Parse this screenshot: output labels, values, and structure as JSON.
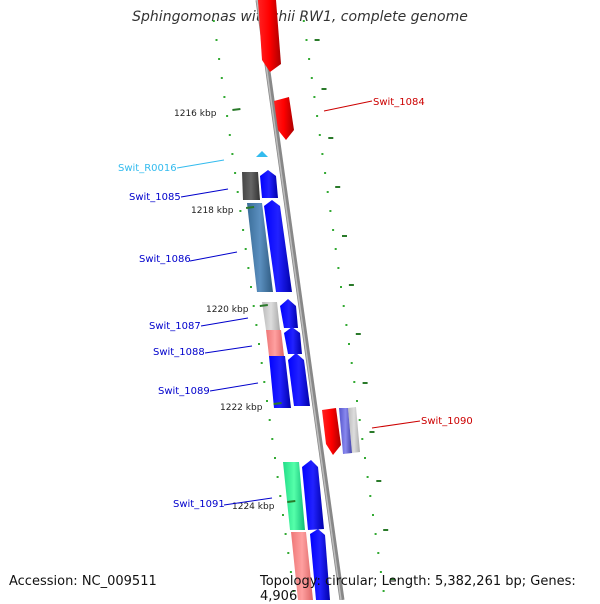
{
  "title": "Sphingomonas wittichii RW1, complete genome",
  "footer": {
    "accession": "Accession: NC_009511",
    "topology": "Topology: circular; Length: 5,382,261 bp; Genes: 4,906"
  },
  "ticks": [
    "1216 kbp",
    "1218 kbp",
    "1220 kbp",
    "1222 kbp",
    "1224 kbp"
  ],
  "genes": [
    {
      "label": "Swit_1084",
      "color": "#cc0000"
    },
    {
      "label": "Swit_R0016",
      "color": "#33bbee"
    },
    {
      "label": "Swit_1085",
      "color": "#0000cc"
    },
    {
      "label": "Swit_1086",
      "color": "#0000cc"
    },
    {
      "label": "Swit_1087",
      "color": "#0000cc"
    },
    {
      "label": "Swit_1088",
      "color": "#0000cc"
    },
    {
      "label": "Swit_1089",
      "color": "#0000cc"
    },
    {
      "label": "Swit_1090",
      "color": "#cc0000"
    },
    {
      "label": "Swit_1091",
      "color": "#0000cc"
    }
  ],
  "colors": {
    "backbone": "#888888",
    "forward_gene": "#0000ee",
    "reverse_gene": "#ee0000",
    "tick": "#2a7a2a",
    "dots": "#33aa33"
  }
}
